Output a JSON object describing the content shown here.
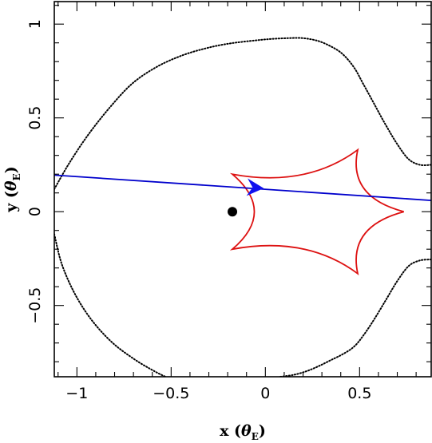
{
  "chart_data": {
    "type": "line",
    "title": "",
    "xlabel": "x",
    "xlabel_unit": "θ",
    "xlabel_unit_sub": "E",
    "ylabel": "y",
    "ylabel_unit": "θ",
    "ylabel_unit_sub": "E",
    "xlim": [
      -1.12,
      0.88
    ],
    "ylim": [
      -0.88,
      1.12
    ],
    "grid": false,
    "x_ticks": [
      -1,
      -0.5,
      0,
      0.5
    ],
    "x_tick_labels": [
      "−1",
      "−0.5",
      "0",
      "0.5"
    ],
    "y_ticks": [
      -0.5,
      0,
      0.5,
      1
    ],
    "y_tick_labels": [
      "−0.5",
      "0",
      "0.5",
      "1"
    ],
    "series": [
      {
        "kind": "critical-curve",
        "color": "#000000",
        "style": "dotted",
        "x": [
          0.88,
          0.82,
          0.76,
          0.7,
          0.64,
          0.58,
          0.52,
          0.47,
          0.41,
          0.35,
          0.28,
          0.2,
          0.12,
          0.02,
          -0.08,
          -0.2,
          -0.32,
          -0.45,
          -0.58,
          -0.71,
          -0.83,
          -0.94,
          -1.04,
          -1.12
        ],
        "y": [
          0.25,
          0.25,
          0.28,
          0.36,
          0.46,
          0.57,
          0.68,
          0.77,
          0.84,
          0.88,
          0.91,
          0.925,
          0.925,
          0.92,
          0.91,
          0.895,
          0.87,
          0.83,
          0.77,
          0.68,
          0.55,
          0.41,
          0.26,
          0.12
        ]
      },
      {
        "kind": "critical-curve",
        "color": "#000000",
        "style": "dotted",
        "x": [
          0.88,
          0.82,
          0.76,
          0.7,
          0.64,
          0.58,
          0.52,
          0.47,
          0.41,
          0.35,
          0.29,
          0.22,
          0.15,
          0.08
        ],
        "y": [
          -0.255,
          -0.26,
          -0.29,
          -0.37,
          -0.47,
          -0.57,
          -0.66,
          -0.72,
          -0.76,
          -0.79,
          -0.82,
          -0.85,
          -0.87,
          -0.88
        ]
      },
      {
        "kind": "critical-curve",
        "color": "#000000",
        "style": "dotted",
        "x": [
          -1.12,
          -1.08,
          -1.01,
          -0.92,
          -0.81,
          -0.69,
          -0.59,
          -0.53
        ],
        "y": [
          -0.12,
          -0.28,
          -0.44,
          -0.58,
          -0.7,
          -0.79,
          -0.85,
          -0.88
        ]
      },
      {
        "kind": "caustic",
        "color": "#dd1111",
        "style": "solid",
        "cusps": [
          [
            0.735,
            0.0
          ],
          [
            0.49,
            0.33
          ],
          [
            -0.175,
            0.2
          ],
          [
            -0.175,
            -0.2
          ],
          [
            0.49,
            -0.33
          ]
        ]
      },
      {
        "kind": "source-trajectory",
        "color": "#0000cc",
        "style": "solid",
        "x": [
          -1.12,
          0.88
        ],
        "y": [
          0.195,
          0.06
        ]
      }
    ],
    "arrow": {
      "color": "#1111ee",
      "x": -0.055,
      "y": 0.128,
      "direction": "right"
    },
    "marker": {
      "color": "#000000",
      "shape": "filled-circle",
      "x": -0.175,
      "y": 0.0
    }
  }
}
